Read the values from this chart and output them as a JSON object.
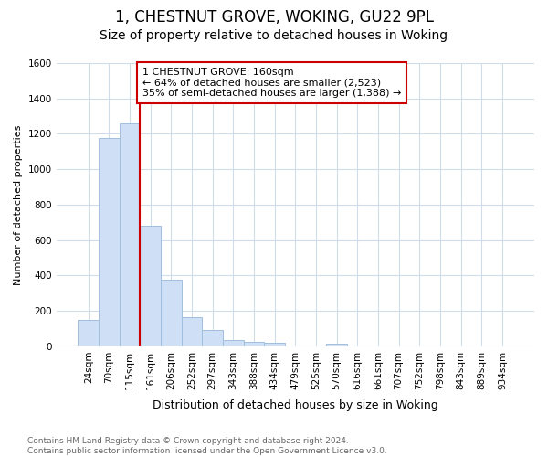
{
  "title": "1, CHESTNUT GROVE, WOKING, GU22 9PL",
  "subtitle": "Size of property relative to detached houses in Woking",
  "xlabel": "Distribution of detached houses by size in Woking",
  "ylabel": "Number of detached properties",
  "categories": [
    "24sqm",
    "70sqm",
    "115sqm",
    "161sqm",
    "206sqm",
    "252sqm",
    "297sqm",
    "343sqm",
    "388sqm",
    "434sqm",
    "479sqm",
    "525sqm",
    "570sqm",
    "616sqm",
    "661sqm",
    "707sqm",
    "752sqm",
    "798sqm",
    "843sqm",
    "889sqm",
    "934sqm"
  ],
  "values": [
    150,
    1175,
    1260,
    680,
    375,
    165,
    90,
    35,
    25,
    20,
    0,
    0,
    15,
    0,
    0,
    0,
    0,
    0,
    0,
    0,
    0
  ],
  "bar_color": "#cfdff5",
  "bar_edge_color": "#a0bedd",
  "vline_color": "#cc0000",
  "vline_x_index": 3,
  "annotation_lines": [
    "1 CHESTNUT GROVE: 160sqm",
    "← 64% of detached houses are smaller (2,523)",
    "35% of semi-detached houses are larger (1,388) →"
  ],
  "annotation_box_color": "#cc0000",
  "ylim": [
    0,
    1600
  ],
  "yticks": [
    0,
    200,
    400,
    600,
    800,
    1000,
    1200,
    1400,
    1600
  ],
  "grid_color": "#d0dce8",
  "plot_bg_color": "#ffffff",
  "fig_bg_color": "#ffffff",
  "footer_line1": "Contains HM Land Registry data © Crown copyright and database right 2024.",
  "footer_line2": "Contains public sector information licensed under the Open Government Licence v3.0.",
  "title_fontsize": 12,
  "subtitle_fontsize": 10,
  "xlabel_fontsize": 9,
  "ylabel_fontsize": 8,
  "tick_fontsize": 7.5,
  "footer_fontsize": 6.5,
  "annotation_fontsize": 8
}
